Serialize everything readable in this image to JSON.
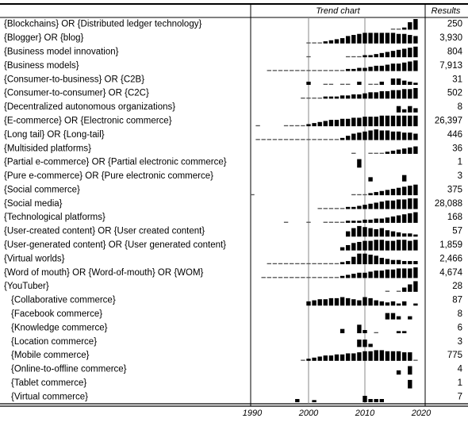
{
  "table": {
    "header": {
      "trend": "Trend chart",
      "results": "Results"
    },
    "axis_ticks": [
      1990,
      2000,
      2010,
      2020
    ],
    "ref_lines": [
      2000,
      2010
    ],
    "rows": [
      {
        "label": "{Blockchains} OR {Distributed ledger technology}",
        "results": "250",
        "start": 2015,
        "trend": [
          1,
          1,
          2,
          7,
          10
        ]
      },
      {
        "label": "{Blogger} OR {blog}",
        "results": "3,930",
        "start": 2000,
        "trend": [
          1,
          1,
          1,
          2,
          3,
          4,
          5,
          7,
          8,
          9,
          10,
          10,
          10,
          10,
          10,
          10,
          9,
          9,
          8,
          7
        ]
      },
      {
        "label": "{Business model innovation}",
        "results": "804",
        "start": 2000,
        "trend": [
          1,
          0,
          0,
          0,
          0,
          0,
          0,
          1,
          1,
          1,
          2,
          2,
          3,
          4,
          5,
          6,
          7,
          8,
          9,
          10
        ]
      },
      {
        "label": "{Business models}",
        "results": "7,913",
        "start": 1993,
        "trend": [
          1,
          1,
          1,
          1,
          1,
          1,
          1,
          1,
          1,
          1,
          1,
          1,
          1,
          1,
          2,
          2,
          3,
          3,
          4,
          5,
          5,
          6,
          7,
          7,
          8,
          9,
          10
        ]
      },
      {
        "label": "{Consumer-to-business} OR {C2B}",
        "results": "31",
        "start": 2000,
        "trend": [
          3,
          0,
          0,
          1,
          1,
          0,
          1,
          1,
          0,
          3,
          0,
          1,
          1,
          3,
          0,
          6,
          6,
          4,
          3,
          2
        ]
      },
      {
        "label": "{Consumer-to-consumer} OR {C2C}",
        "results": "502",
        "start": 1999,
        "trend": [
          1,
          1,
          1,
          1,
          2,
          2,
          2,
          3,
          3,
          4,
          4,
          5,
          6,
          6,
          7,
          7,
          8,
          8,
          9,
          9,
          10
        ]
      },
      {
        "label": "{Decentralized autonomous organizations}",
        "results": "8",
        "start": 2016,
        "trend": [
          6,
          3,
          6,
          4
        ]
      },
      {
        "label": "{E-commerce} OR {Electronic commerce}",
        "results": "26,397",
        "start": 1991,
        "trend": [
          1,
          0,
          0,
          0,
          0,
          1,
          1,
          1,
          1,
          2,
          3,
          4,
          5,
          6,
          6,
          7,
          7,
          8,
          8,
          9,
          9,
          9,
          10,
          10,
          10,
          10,
          10,
          10,
          10
        ]
      },
      {
        "label": "{Long tail} OR {Long-tail}",
        "results": "446",
        "start": 1991,
        "trend": [
          1,
          1,
          1,
          1,
          1,
          1,
          1,
          1,
          1,
          1,
          1,
          1,
          1,
          1,
          1,
          2,
          4,
          6,
          7,
          8,
          9,
          10,
          9,
          9,
          8,
          8,
          7,
          7,
          6
        ]
      },
      {
        "label": "{Multisided platforms}",
        "results": "36",
        "start": 2008,
        "trend": [
          1,
          0,
          0,
          1,
          1,
          1,
          2,
          3,
          4,
          5,
          6,
          7
        ]
      },
      {
        "label": "{Partial e-commerce} OR {Partial electronic commerce}",
        "results": "1",
        "start": 2009,
        "trend": [
          8
        ]
      },
      {
        "label": "{Pure e-commerce} OR {Pure electronic commerce}",
        "results": "3",
        "start": 2011,
        "trend": [
          4,
          0,
          0,
          0,
          0,
          0,
          6
        ]
      },
      {
        "label": "{Social commerce}",
        "results": "375",
        "start": 1990,
        "trend": [
          1,
          0,
          0,
          0,
          0,
          0,
          0,
          0,
          0,
          0,
          0,
          0,
          0,
          0,
          0,
          0,
          0,
          0,
          1,
          1,
          1,
          2,
          3,
          4,
          5,
          6,
          7,
          8,
          9,
          10
        ]
      },
      {
        "label": "{Social media}",
        "results": "28,088",
        "start": 2002,
        "trend": [
          1,
          1,
          1,
          1,
          1,
          2,
          2,
          3,
          4,
          5,
          6,
          7,
          8,
          8,
          9,
          9,
          10,
          10
        ]
      },
      {
        "label": "{Technological platforms}",
        "results": "168",
        "start": 1996,
        "trend": [
          1,
          0,
          0,
          0,
          1,
          0,
          0,
          1,
          1,
          1,
          1,
          2,
          2,
          2,
          3,
          3,
          4,
          4,
          5,
          6,
          7,
          8,
          9,
          10
        ]
      },
      {
        "label": "{User-created content} OR {User created content}",
        "results": "57",
        "start": 2007,
        "trend": [
          5,
          8,
          10,
          9,
          8,
          7,
          8,
          6,
          5,
          4,
          3,
          3,
          2
        ]
      },
      {
        "label": "{User-generated content} OR {User generated content}",
        "results": "1,859",
        "start": 2006,
        "trend": [
          3,
          5,
          7,
          8,
          9,
          9,
          10,
          10,
          9,
          9,
          10,
          10,
          9,
          10
        ]
      },
      {
        "label": "{Virtual worlds}",
        "results": "2,466",
        "start": 1993,
        "trend": [
          1,
          1,
          1,
          1,
          1,
          1,
          1,
          1,
          1,
          1,
          1,
          1,
          1,
          2,
          3,
          7,
          10,
          10,
          9,
          8,
          6,
          5,
          4,
          4,
          3,
          3,
          3
        ]
      },
      {
        "label": "{Word of mouth} OR {Word-of-mouth} OR {WOM}",
        "results": "4,674",
        "start": 1992,
        "trend": [
          1,
          1,
          1,
          1,
          1,
          1,
          1,
          1,
          1,
          1,
          1,
          1,
          1,
          1,
          2,
          3,
          4,
          5,
          5,
          6,
          7,
          7,
          8,
          8,
          9,
          9,
          9,
          10
        ]
      },
      {
        "label": "{YouTuber}",
        "results": "28",
        "start": 2014,
        "trend": [
          1,
          0,
          1,
          4,
          7,
          10
        ]
      },
      {
        "label": "{Collaborative commerce}",
        "results": "87",
        "start": 2000,
        "trend": [
          4,
          5,
          6,
          6,
          7,
          7,
          8,
          7,
          6,
          5,
          8,
          7,
          5,
          4,
          3,
          4,
          2,
          4,
          0,
          2
        ],
        "indent": true
      },
      {
        "label": "{Facebook commerce}",
        "results": "8",
        "start": 2014,
        "trend": [
          6,
          6,
          3,
          0,
          3
        ],
        "indent": true
      },
      {
        "label": "{Knowledge commerce}",
        "results": "6",
        "start": 2006,
        "trend": [
          4,
          0,
          0,
          8,
          3,
          0,
          1,
          0,
          0,
          0,
          2,
          2
        ],
        "indent": true
      },
      {
        "label": "{Location commerce}",
        "results": "3",
        "start": 2009,
        "trend": [
          7,
          7,
          3
        ],
        "indent": true
      },
      {
        "label": "{Mobile commerce}",
        "results": "775",
        "start": 1999,
        "trend": [
          1,
          2,
          3,
          4,
          5,
          5,
          6,
          6,
          7,
          7,
          8,
          9,
          9,
          10,
          10,
          9,
          9,
          9,
          8,
          8,
          1
        ],
        "indent": true
      },
      {
        "label": "{Online-to-offline commerce}",
        "results": "4",
        "start": 2016,
        "trend": [
          4,
          0,
          8
        ],
        "indent": true
      },
      {
        "label": "{Tablet commerce}",
        "results": "1",
        "start": 2018,
        "trend": [
          8
        ],
        "indent": true
      },
      {
        "label": "{Virtual commerce}",
        "results": "7",
        "start": 1998,
        "trend": [
          3,
          0,
          0,
          2,
          0,
          0,
          0,
          0,
          0,
          0,
          0,
          0,
          6,
          3,
          3,
          3
        ],
        "indent": true
      }
    ]
  }
}
